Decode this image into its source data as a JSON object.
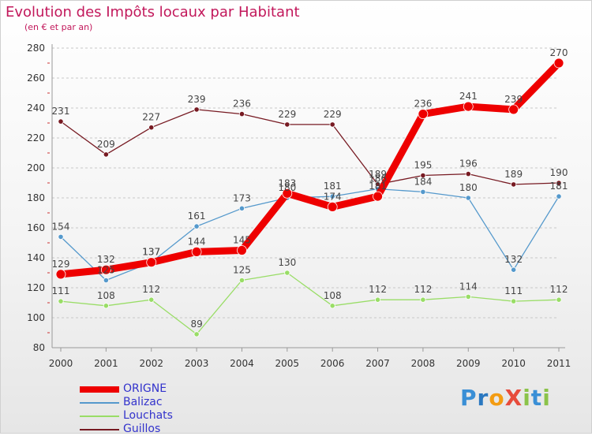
{
  "chart_data": {
    "type": "line",
    "title": "Evolution des Impôts locaux par Habitant",
    "subtitle": "(en € et par an)",
    "xlabel": "",
    "ylabel": "",
    "x": [
      "2000",
      "2001",
      "2002",
      "2003",
      "2004",
      "2005",
      "2006",
      "2007",
      "2008",
      "2009",
      "2010",
      "2011"
    ],
    "ylim": [
      80,
      280
    ],
    "yticks": [
      "80",
      "100",
      "120",
      "140",
      "160",
      "180",
      "200",
      "220",
      "240",
      "260",
      "280"
    ],
    "grid": "horizontal dashed",
    "legend": "bottom-left",
    "series": [
      {
        "name": "ORIGNE",
        "color": "#ee0000",
        "values": [
          129,
          132,
          137,
          144,
          145,
          183,
          174,
          181,
          236,
          241,
          239,
          270
        ]
      },
      {
        "name": "Balizac",
        "color": "#5599cc",
        "values": [
          154,
          125,
          137,
          161,
          173,
          180,
          181,
          186,
          184,
          180,
          132,
          181
        ]
      },
      {
        "name": "Louchats",
        "color": "#99dd66",
        "values": [
          111,
          108,
          112,
          89,
          125,
          130,
          108,
          112,
          112,
          114,
          111,
          112
        ]
      },
      {
        "name": "Guillos",
        "color": "#771a22",
        "values": [
          231,
          209,
          227,
          239,
          236,
          229,
          229,
          189,
          195,
          196,
          189,
          190
        ]
      }
    ]
  },
  "brand": {
    "letters": [
      {
        "char": "P",
        "color": "#3a8fd6"
      },
      {
        "char": "r",
        "color": "#2a78c0"
      },
      {
        "char": "o",
        "color": "#f39c12"
      },
      {
        "char": "X",
        "color": "#e74c3c"
      },
      {
        "char": "i",
        "color": "#8bc34a"
      },
      {
        "char": "t",
        "color": "#3a8fd6"
      },
      {
        "char": "i",
        "color": "#8bc34a"
      }
    ]
  }
}
